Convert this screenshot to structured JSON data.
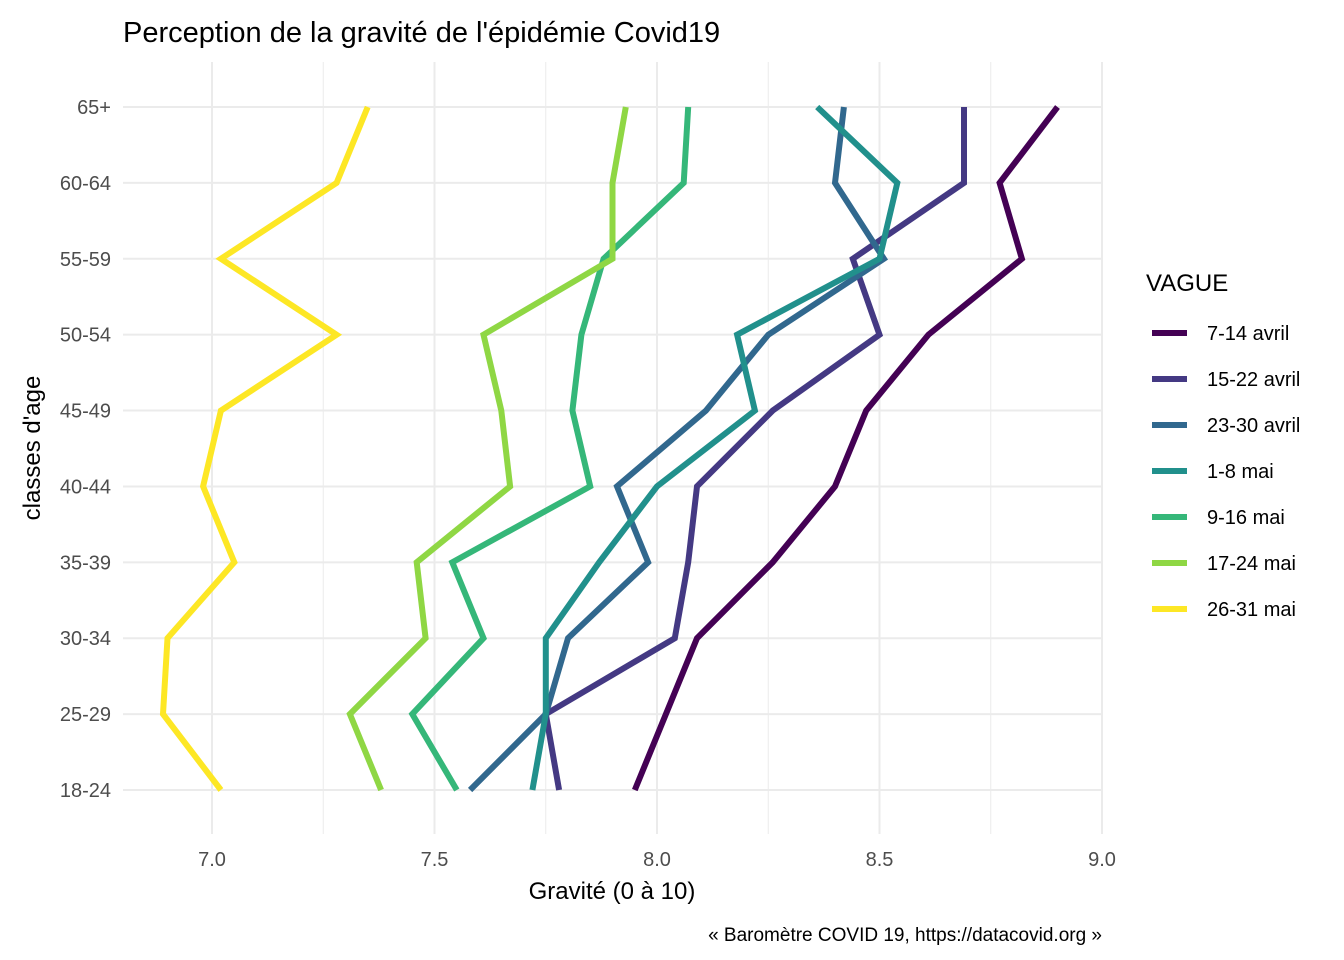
{
  "chart_data": {
    "type": "line",
    "title": "Perception de la gravité de l'épidémie Covid19",
    "xlabel": "Gravité (0 à 10)",
    "ylabel": "classes d'age",
    "caption": "« Baromètre COVID 19, https://datacovid.org »",
    "xlim": [
      6.8,
      9.0
    ],
    "x_ticks": [
      7.0,
      7.5,
      8.0,
      8.5,
      9.0
    ],
    "x_tick_labels": [
      "7.0",
      "7.5",
      "8.0",
      "8.5",
      "9.0"
    ],
    "categories": [
      "18-24",
      "25-29",
      "30-34",
      "35-39",
      "40-44",
      "45-49",
      "50-54",
      "55-59",
      "60-64",
      "65+"
    ],
    "grid": true,
    "legend": {
      "title": "VAGUE",
      "position": "right"
    },
    "series": [
      {
        "name": "7-14 avril",
        "color": "#440154",
        "values": [
          7.95,
          8.02,
          8.09,
          8.26,
          8.4,
          8.47,
          8.61,
          8.82,
          8.77,
          8.9
        ]
      },
      {
        "name": "15-22 avril",
        "color": "#443983",
        "values": [
          7.78,
          7.75,
          8.04,
          8.07,
          8.09,
          8.26,
          8.5,
          8.44,
          8.69,
          8.69
        ]
      },
      {
        "name": "23-30 avril",
        "color": "#31688E",
        "values": [
          7.58,
          7.75,
          7.8,
          7.98,
          7.91,
          8.11,
          8.25,
          8.51,
          8.4,
          8.42
        ]
      },
      {
        "name": "1-8 mai",
        "color": "#21908C",
        "values": [
          7.72,
          7.75,
          7.75,
          7.87,
          8.0,
          8.22,
          8.18,
          8.5,
          8.54,
          8.36
        ]
      },
      {
        "name": "9-16 mai",
        "color": "#35B779",
        "values": [
          7.55,
          7.45,
          7.61,
          7.54,
          7.85,
          7.81,
          7.83,
          7.88,
          8.06,
          8.07
        ]
      },
      {
        "name": "17-24 mai",
        "color": "#8FD744",
        "values": [
          7.38,
          7.31,
          7.48,
          7.46,
          7.67,
          7.65,
          7.61,
          7.9,
          7.9,
          7.93
        ]
      },
      {
        "name": "26-31 mai",
        "color": "#FDE725",
        "values": [
          7.02,
          6.89,
          6.9,
          7.05,
          6.98,
          7.02,
          7.28,
          7.02,
          7.28,
          7.35
        ]
      }
    ]
  }
}
